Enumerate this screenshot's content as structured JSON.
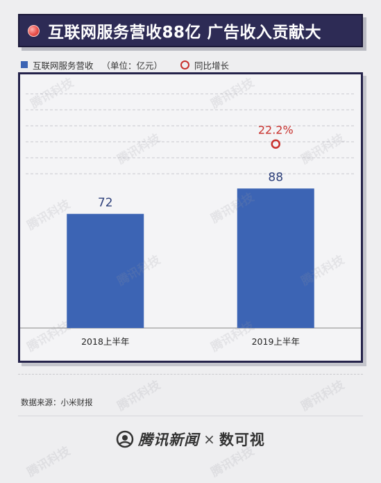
{
  "title": "互联网服务营收88亿 广告收入贡献大",
  "legend": {
    "bar_series": "互联网服务营收",
    "unit": "（单位：亿元）",
    "growth_series": "同比增长"
  },
  "source": "数据来源：小米财报",
  "footer": {
    "brand": "腾讯新闻",
    "times": "×",
    "partner": "数可视"
  },
  "watermark": "腾讯科技",
  "colors": {
    "bar": "#3c64b4",
    "growth": "#c8302c",
    "title_bg": "#2d2b55",
    "frame": "#24224a"
  },
  "chart_data": {
    "type": "bar",
    "categories": [
      "2018上半年",
      "2019上半年"
    ],
    "series": [
      {
        "name": "互联网服务营收",
        "values": [
          72,
          88
        ],
        "labels": [
          "72",
          "88"
        ]
      },
      {
        "name": "同比增长",
        "type": "marker",
        "values": [
          null,
          22.2
        ],
        "labels": [
          "",
          "22.2%"
        ]
      }
    ],
    "ylim": [
      0,
      160
    ],
    "grid": true
  }
}
